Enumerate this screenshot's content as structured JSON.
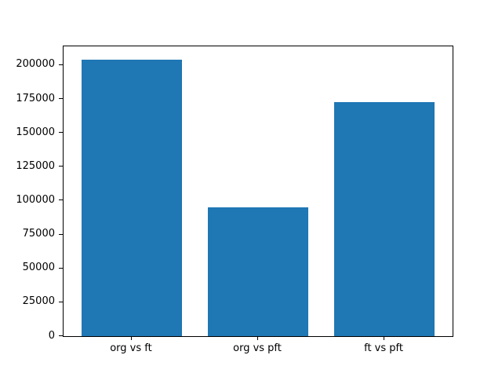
{
  "chart_data": {
    "type": "bar",
    "title": "",
    "xlabel": "",
    "ylabel": "",
    "categories": [
      "org vs ft",
      "org vs pft",
      "ft vs pft"
    ],
    "values": [
      204000,
      95000,
      173000
    ],
    "ylim": [
      0,
      214200
    ],
    "yticks": [
      0,
      25000,
      50000,
      75000,
      100000,
      125000,
      150000,
      175000,
      200000
    ],
    "grid": false,
    "legend_position": "none",
    "bar_color": "#1f77b4"
  },
  "colors": {
    "background": "#ffffff",
    "spine": "#000000",
    "text": "#000000",
    "bar": "#1f77b4"
  }
}
